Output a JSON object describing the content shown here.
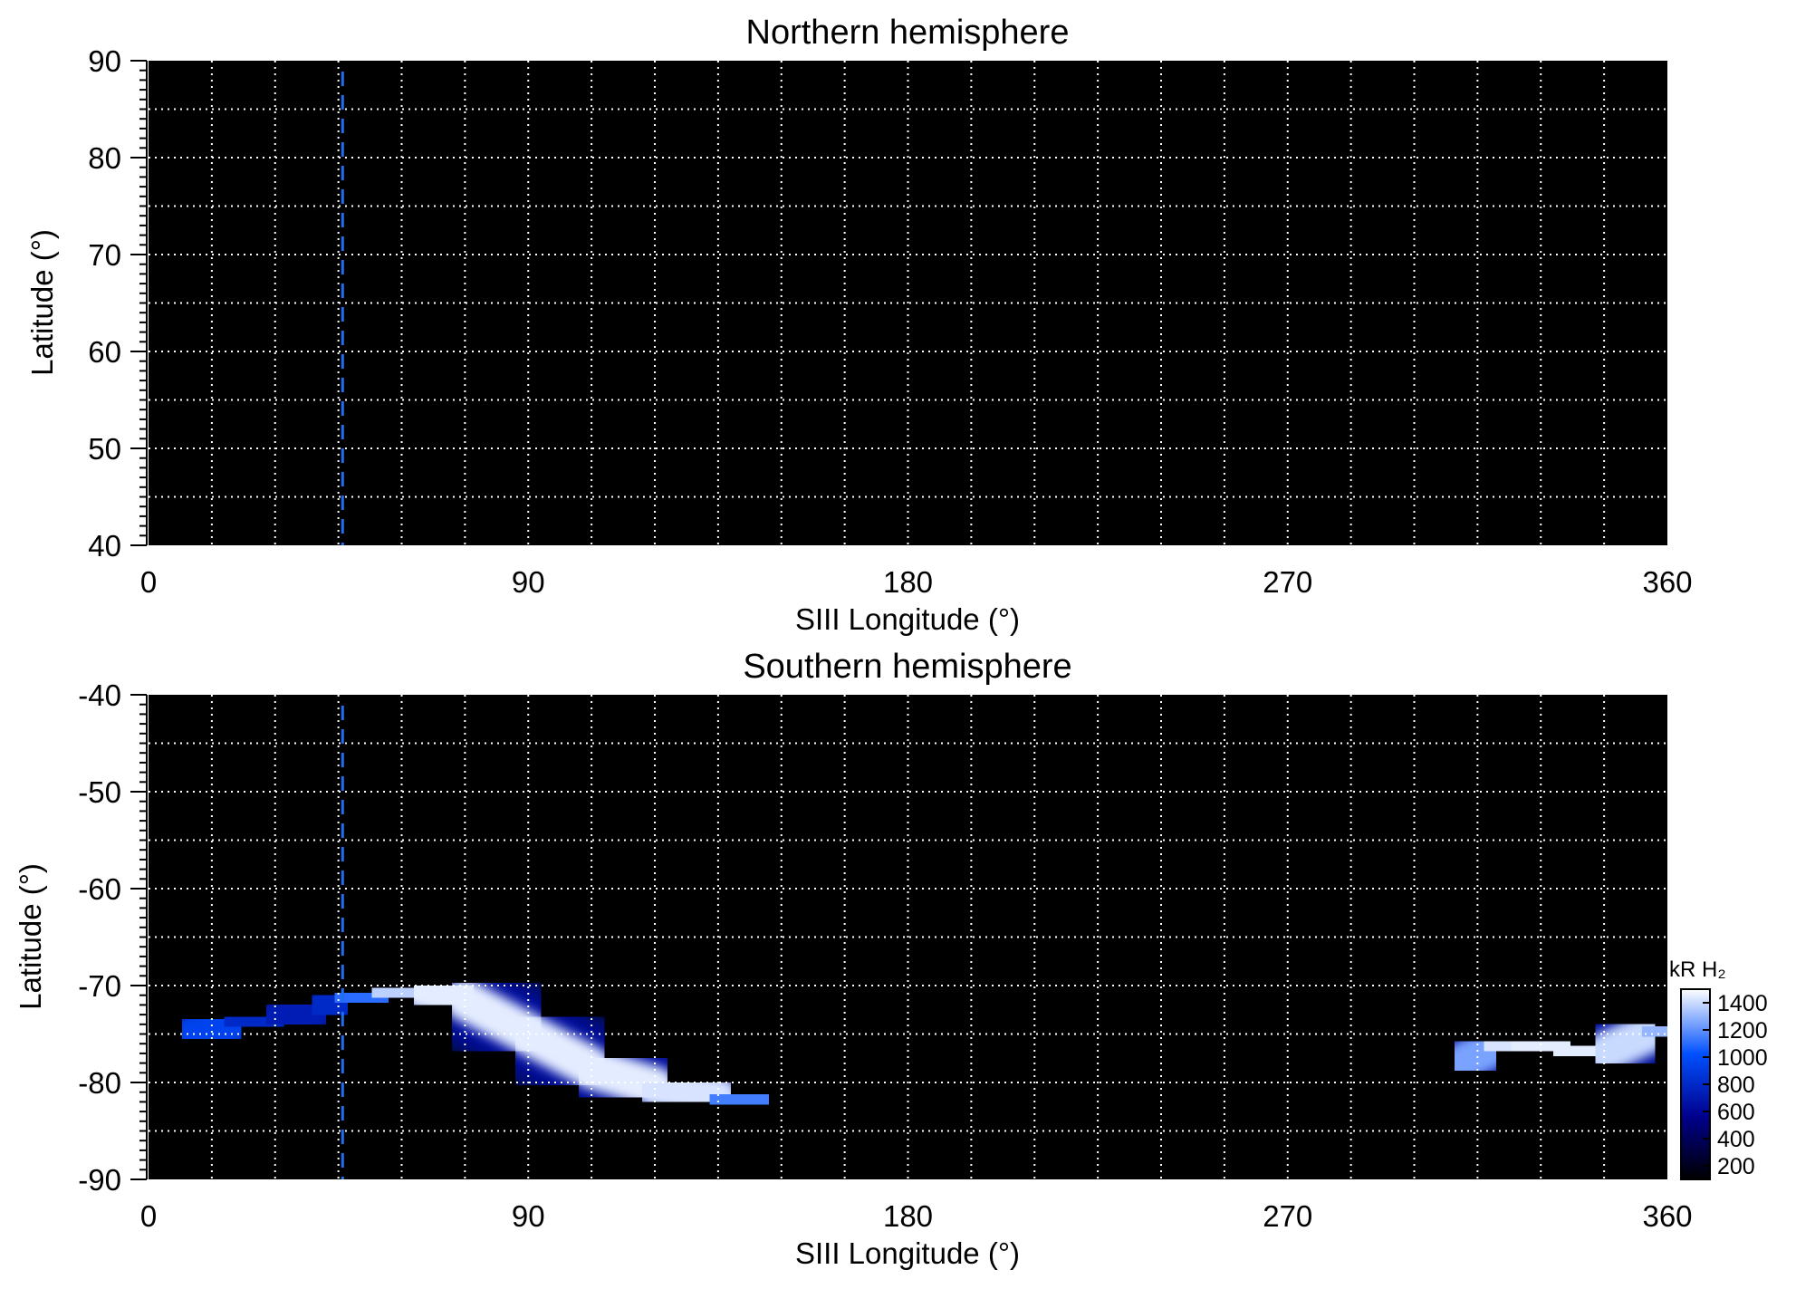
{
  "chart_data": [
    {
      "type": "heatmap",
      "title": "Northern hemisphere",
      "xlabel": "SIII Longitude (°)",
      "ylabel": "Latitude (°)",
      "xlim": [
        0,
        360
      ],
      "ylim": [
        40,
        90
      ],
      "xticks": [
        0,
        90,
        180,
        270,
        360
      ],
      "yticks": [
        40,
        50,
        60,
        70,
        80,
        90
      ],
      "grid": true,
      "marker_longitude": 46,
      "emission_regions": []
    },
    {
      "type": "heatmap",
      "title": "Southern hemisphere",
      "xlabel": "SIII Longitude (°)",
      "ylabel": "Latitude (°)",
      "xlim": [
        0,
        360
      ],
      "ylim": [
        -90,
        -40
      ],
      "xticks": [
        0,
        90,
        180,
        270,
        360
      ],
      "yticks": [
        -40,
        -50,
        -60,
        -70,
        -80,
        -90
      ],
      "grid": true,
      "marker_longitude": 46,
      "emission_regions": [
        {
          "lon": [
            0,
            10,
            20,
            30,
            40,
            46,
            55,
            65,
            75,
            90,
            105,
            120,
            135,
            145
          ],
          "lat": [
            -75,
            -75,
            -74,
            -73.5,
            -72.5,
            -71.5,
            -71,
            -70.5,
            -71.5,
            -75,
            -78.5,
            -80.5,
            -81.5,
            -82
          ],
          "intensity_kR": [
            1000,
            1050,
            850,
            750,
            700,
            900,
            1300,
            1450,
            1450,
            1450,
            1450,
            1450,
            1400,
            900
          ]
        },
        {
          "lon": [
            311,
            318,
            325,
            335,
            345,
            355,
            360
          ],
          "lat": [
            -78,
            -76.5,
            -76,
            -76.5,
            -77,
            -75,
            -74.5
          ],
          "intensity_kR": [
            1100,
            1400,
            1450,
            1450,
            1450,
            1350,
            1250
          ]
        }
      ]
    }
  ],
  "colorbar": {
    "label": "kR H₂",
    "ticks": [
      200,
      400,
      600,
      800,
      1000,
      1200,
      1400
    ],
    "range": [
      100,
      1500
    ],
    "colors": [
      "#000000",
      "#00008c",
      "#0050ff",
      "#ffffff"
    ]
  }
}
